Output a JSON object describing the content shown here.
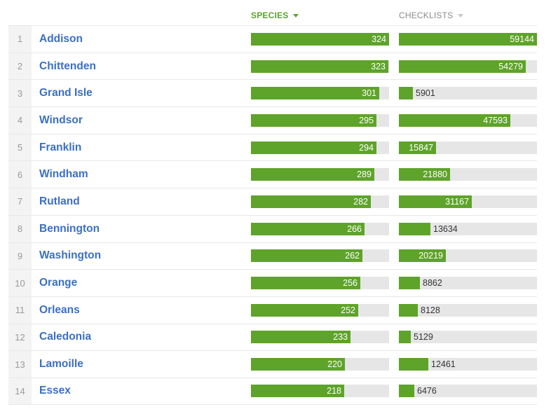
{
  "header": {
    "species_label": "SPECIES",
    "checklists_label": "CHECKLISTS"
  },
  "colors": {
    "bar_green": "#5ea32a",
    "track_gray": "#e6e6e6",
    "link_blue": "#3a6fc4"
  },
  "scales": {
    "species_max": 324,
    "checklists_max": 59144
  },
  "rows": [
    {
      "rank": "1",
      "county": "Addison",
      "species": 324,
      "checklists": 59144
    },
    {
      "rank": "2",
      "county": "Chittenden",
      "species": 323,
      "checklists": 54279
    },
    {
      "rank": "3",
      "county": "Grand Isle",
      "species": 301,
      "checklists": 5901
    },
    {
      "rank": "4",
      "county": "Windsor",
      "species": 295,
      "checklists": 47593
    },
    {
      "rank": "5",
      "county": "Franklin",
      "species": 294,
      "checklists": 15847
    },
    {
      "rank": "6",
      "county": "Windham",
      "species": 289,
      "checklists": 21880
    },
    {
      "rank": "7",
      "county": "Rutland",
      "species": 282,
      "checklists": 31167
    },
    {
      "rank": "8",
      "county": "Bennington",
      "species": 266,
      "checklists": 13634
    },
    {
      "rank": "9",
      "county": "Washington",
      "species": 262,
      "checklists": 20219
    },
    {
      "rank": "10",
      "county": "Orange",
      "species": 256,
      "checklists": 8862
    },
    {
      "rank": "11",
      "county": "Orleans",
      "species": 252,
      "checklists": 8128
    },
    {
      "rank": "12",
      "county": "Caledonia",
      "species": 233,
      "checklists": 5129
    },
    {
      "rank": "13",
      "county": "Lamoille",
      "species": 220,
      "checklists": 12461
    },
    {
      "rank": "14",
      "county": "Essex",
      "species": 218,
      "checklists": 6476
    }
  ]
}
